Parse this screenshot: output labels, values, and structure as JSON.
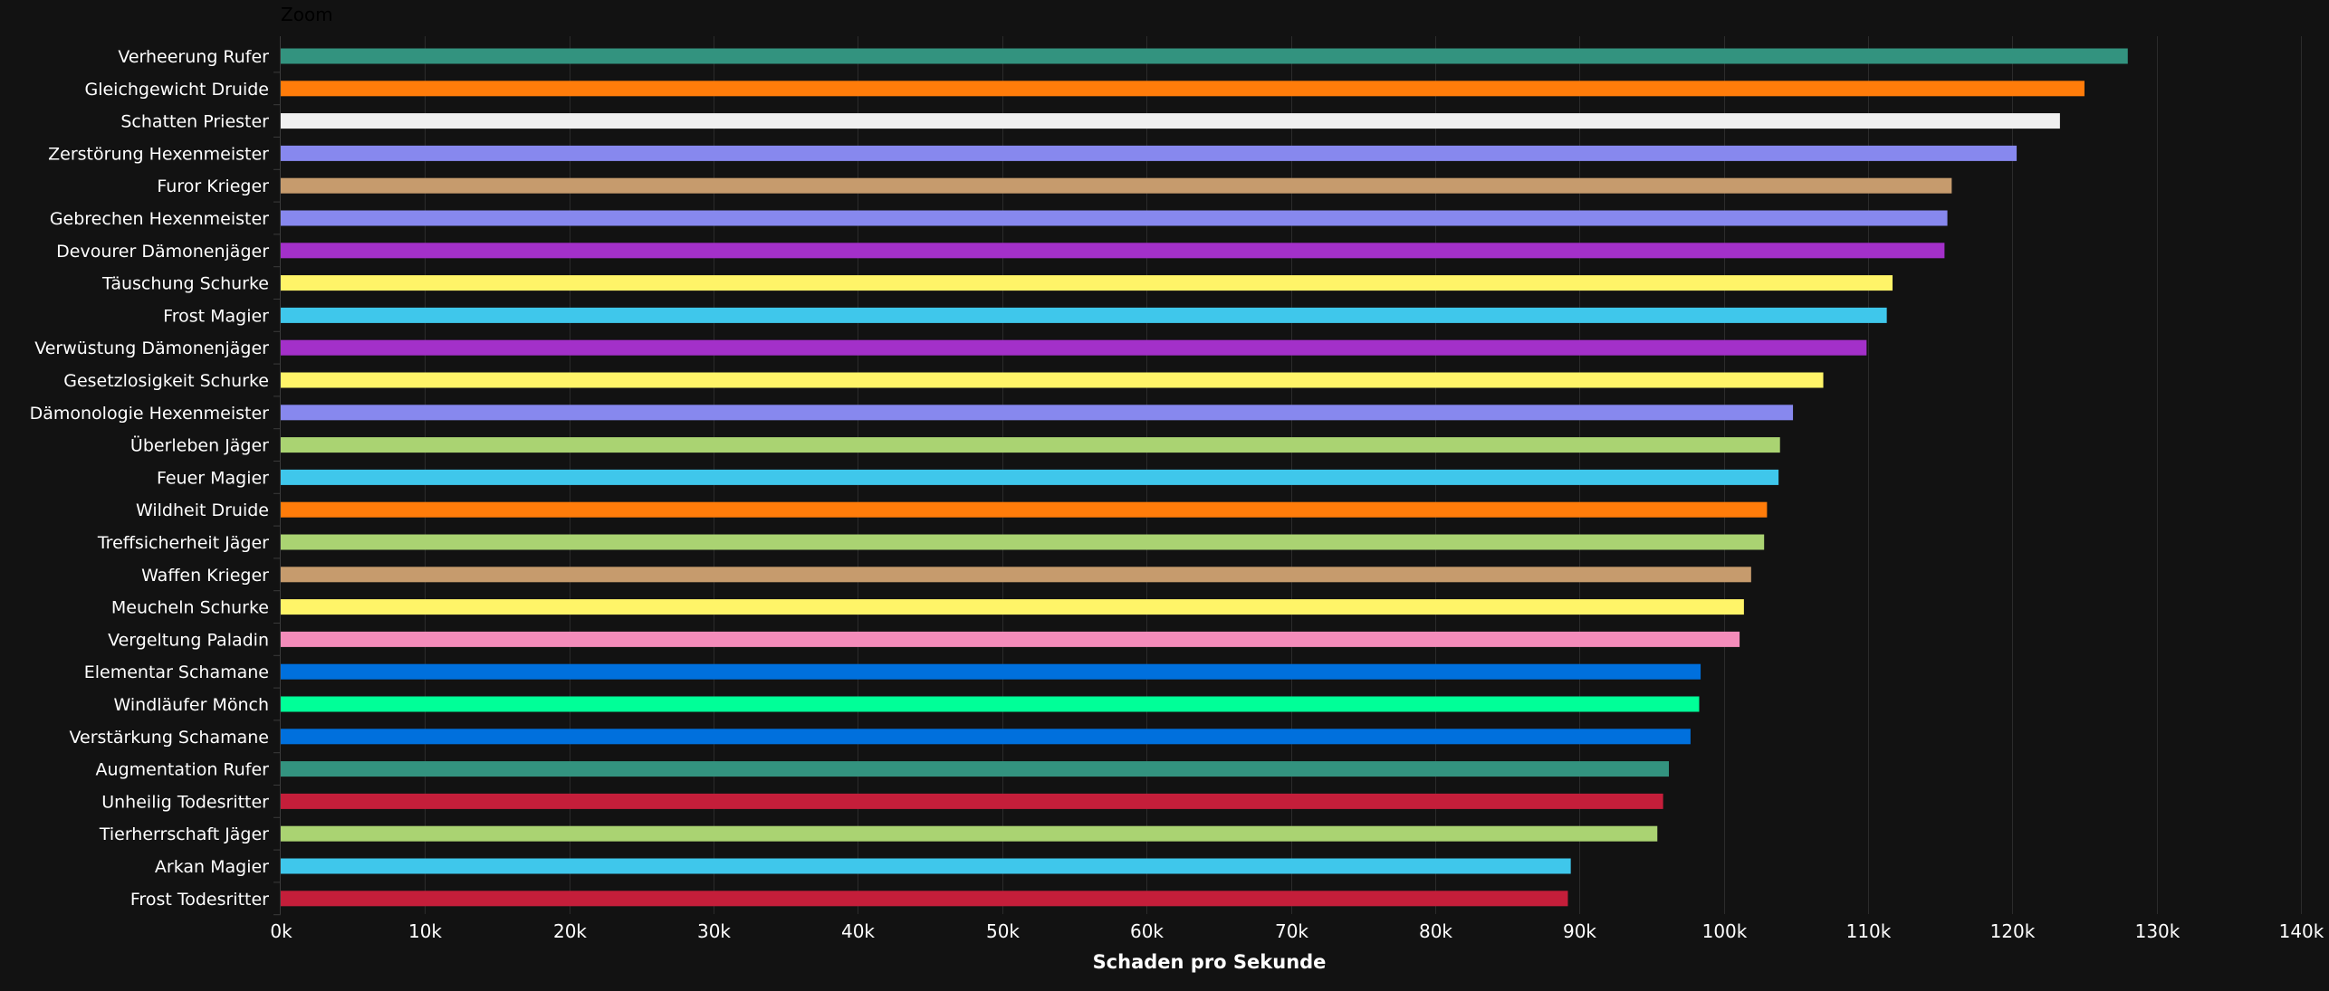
{
  "zoom_label": "Zoom",
  "chart_data": {
    "type": "bar",
    "orientation": "horizontal",
    "title": "",
    "xlabel": "Schaden pro Sekunde",
    "ylabel": "",
    "xlim": [
      0,
      140000
    ],
    "x_ticks": [
      0,
      10000,
      20000,
      30000,
      40000,
      50000,
      60000,
      70000,
      80000,
      90000,
      100000,
      110000,
      120000,
      130000,
      140000
    ],
    "x_tick_labels": [
      "0k",
      "10k",
      "20k",
      "30k",
      "40k",
      "50k",
      "60k",
      "70k",
      "80k",
      "90k",
      "100k",
      "110k",
      "120k",
      "130k",
      "140k"
    ],
    "grid": "vertical",
    "legend": "none",
    "categories": [
      "Verheerung Rufer",
      "Gleichgewicht Druide",
      "Schatten Priester",
      "Zerstörung Hexenmeister",
      "Furor Krieger",
      "Gebrechen Hexenmeister",
      "Devourer Dämonenjäger",
      "Täuschung Schurke",
      "Frost Magier",
      "Verwüstung Dämonenjäger",
      "Gesetzlosigkeit Schurke",
      "Dämonologie Hexenmeister",
      "Überleben Jäger",
      "Feuer Magier",
      "Wildheit Druide",
      "Treffsicherheit Jäger",
      "Waffen Krieger",
      "Meucheln Schurke",
      "Vergeltung Paladin",
      "Elementar Schamane",
      "Windläufer Mönch",
      "Verstärkung Schamane",
      "Augmentation Rufer",
      "Unheilig Todesritter",
      "Tierherrschaft Jäger",
      "Arkan Magier",
      "Frost Todesritter"
    ],
    "values": [
      128000,
      125000,
      123300,
      120300,
      115800,
      115500,
      115300,
      111700,
      111300,
      109900,
      106900,
      104800,
      103900,
      103800,
      103000,
      102800,
      101900,
      101400,
      101100,
      98400,
      98300,
      97700,
      96200,
      95800,
      95400,
      89400,
      89200
    ],
    "colors": [
      "#33937f",
      "#ff7c0a",
      "#f0f0f0",
      "#8788ee",
      "#c69b6d",
      "#8788ee",
      "#a330c9",
      "#fff468",
      "#3fc7eb",
      "#a330c9",
      "#fff468",
      "#8788ee",
      "#aad372",
      "#3fc7eb",
      "#ff7c0a",
      "#aad372",
      "#c69b6d",
      "#fff468",
      "#f48cba",
      "#0070dd",
      "#00ff98",
      "#0070dd",
      "#33937f",
      "#c41e3a",
      "#aad372",
      "#3fc7eb",
      "#c41e3a"
    ]
  }
}
